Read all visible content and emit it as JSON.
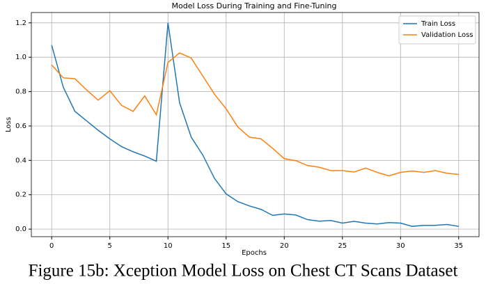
{
  "chart_data": {
    "type": "line",
    "title": "Model Loss During Training and Fine-Tuning",
    "xlabel": "Epochs",
    "ylabel": "Loss",
    "x": [
      0,
      1,
      2,
      3,
      4,
      5,
      6,
      7,
      8,
      9,
      10,
      11,
      12,
      13,
      14,
      15,
      16,
      17,
      18,
      19,
      20,
      21,
      22,
      23,
      24,
      25,
      26,
      27,
      28,
      29,
      30,
      31,
      32,
      33,
      34,
      35
    ],
    "series": [
      {
        "name": "Train Loss",
        "color": "#1f77b4",
        "values": [
          1.07,
          0.825,
          0.685,
          0.63,
          0.575,
          0.525,
          0.48,
          0.45,
          0.425,
          0.395,
          1.2,
          0.735,
          0.535,
          0.43,
          0.295,
          0.205,
          0.16,
          0.135,
          0.115,
          0.08,
          0.088,
          0.082,
          0.055,
          0.046,
          0.05,
          0.035,
          0.045,
          0.035,
          0.03,
          0.038,
          0.035,
          0.016,
          0.022,
          0.022,
          0.027,
          0.016
        ]
      },
      {
        "name": "Validation Loss",
        "color": "#ff7f0e",
        "values": [
          0.955,
          0.88,
          0.875,
          0.81,
          0.75,
          0.805,
          0.72,
          0.685,
          0.775,
          0.665,
          0.97,
          1.025,
          0.995,
          0.89,
          0.785,
          0.7,
          0.595,
          0.535,
          0.525,
          0.47,
          0.41,
          0.398,
          0.37,
          0.36,
          0.34,
          0.34,
          0.332,
          0.355,
          0.33,
          0.31,
          0.33,
          0.338,
          0.33,
          0.34,
          0.325,
          0.318
        ]
      }
    ],
    "xlim": [
      -1.75,
      36.75
    ],
    "xticks": [
      0,
      5,
      10,
      15,
      20,
      25,
      30,
      35
    ],
    "ylim": [
      -0.044,
      1.26
    ],
    "yticks": [
      {
        "value": 0,
        "label": "0.0"
      },
      0.2,
      0.4,
      0.6,
      0.8,
      {
        "value": 1,
        "label": "1.0"
      },
      1.2
    ],
    "grid": true,
    "legend": "upper right",
    "caption": "Figure 15b: Xception Model Loss on Chest CT Scans Dataset"
  }
}
